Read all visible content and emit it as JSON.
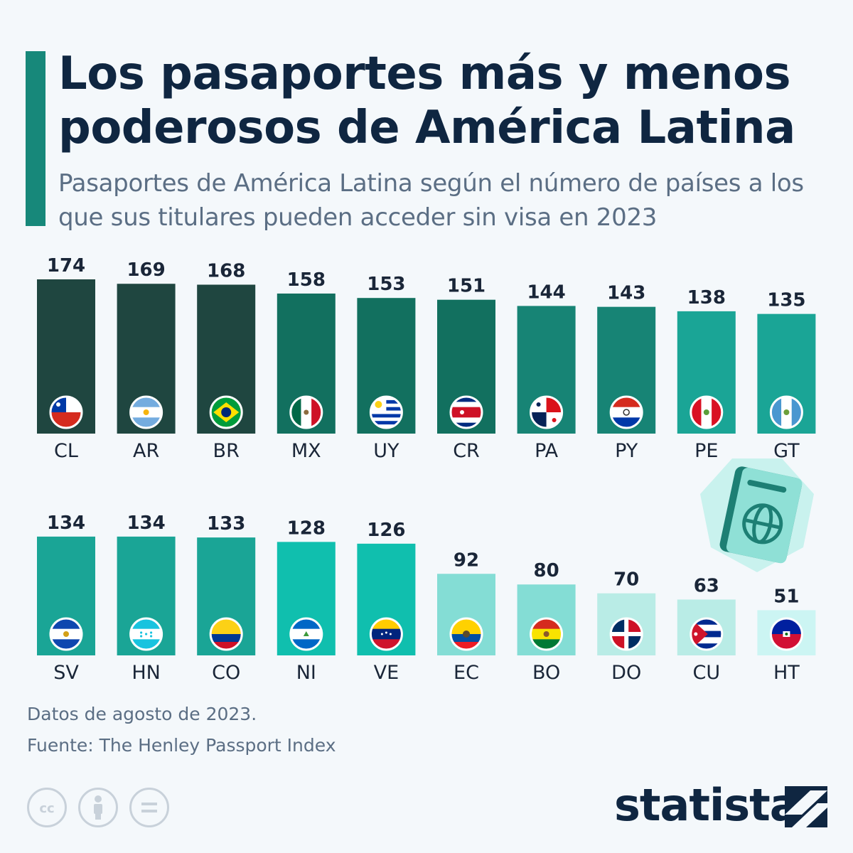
{
  "header": {
    "title": "Los pasaportes más y menos poderosos de América Latina",
    "subtitle": "Pasaportes de América Latina según el número de países a los que sus titulares pueden acceder sin visa en 2023"
  },
  "footer": {
    "note": "Datos de agosto de 2023.",
    "source": "Fuente: The Henley Passport Index",
    "brand": "statista"
  },
  "colors": {
    "accent": "#17887a",
    "title": "#0f2641",
    "subtitle": "#5b6e84",
    "bar_shades": [
      "#1f4640",
      "#12705f",
      "#178475",
      "#1aa596",
      "#10bfae",
      "#84ddd5",
      "#b9ece6",
      "#ccf5f3"
    ]
  },
  "chart_data": {
    "type": "bar",
    "title": "Los pasaportes más y menos poderosos de América Latina",
    "subtitle": "Pasaportes de América Latina según el número de países a los que sus titulares pueden acceder sin visa en 2023",
    "ylim": [
      0,
      174
    ],
    "grid": false,
    "rows": [
      {
        "categories": [
          "CL",
          "AR",
          "BR",
          "MX",
          "UY",
          "CR",
          "PA",
          "PY",
          "PE",
          "GT"
        ],
        "values": [
          174,
          169,
          168,
          158,
          153,
          151,
          144,
          143,
          138,
          135
        ],
        "shade_index": [
          0,
          0,
          0,
          1,
          1,
          1,
          2,
          2,
          3,
          3
        ],
        "flags": [
          "flag-cl",
          "flag-ar",
          "flag-br",
          "flag-mx",
          "flag-uy",
          "flag-cr",
          "flag-pa",
          "flag-py",
          "flag-pe",
          "flag-gt"
        ]
      },
      {
        "categories": [
          "SV",
          "HN",
          "CO",
          "NI",
          "VE",
          "EC",
          "BO",
          "DO",
          "CU",
          "HT"
        ],
        "values": [
          134,
          134,
          133,
          128,
          126,
          92,
          80,
          70,
          63,
          51
        ],
        "shade_index": [
          3,
          3,
          3,
          4,
          4,
          5,
          5,
          6,
          6,
          7
        ],
        "flags": [
          "flag-sv",
          "flag-hn",
          "flag-co",
          "flag-ni",
          "flag-ve",
          "flag-ec",
          "flag-bo",
          "flag-do",
          "flag-cu",
          "flag-ht"
        ]
      }
    ]
  }
}
